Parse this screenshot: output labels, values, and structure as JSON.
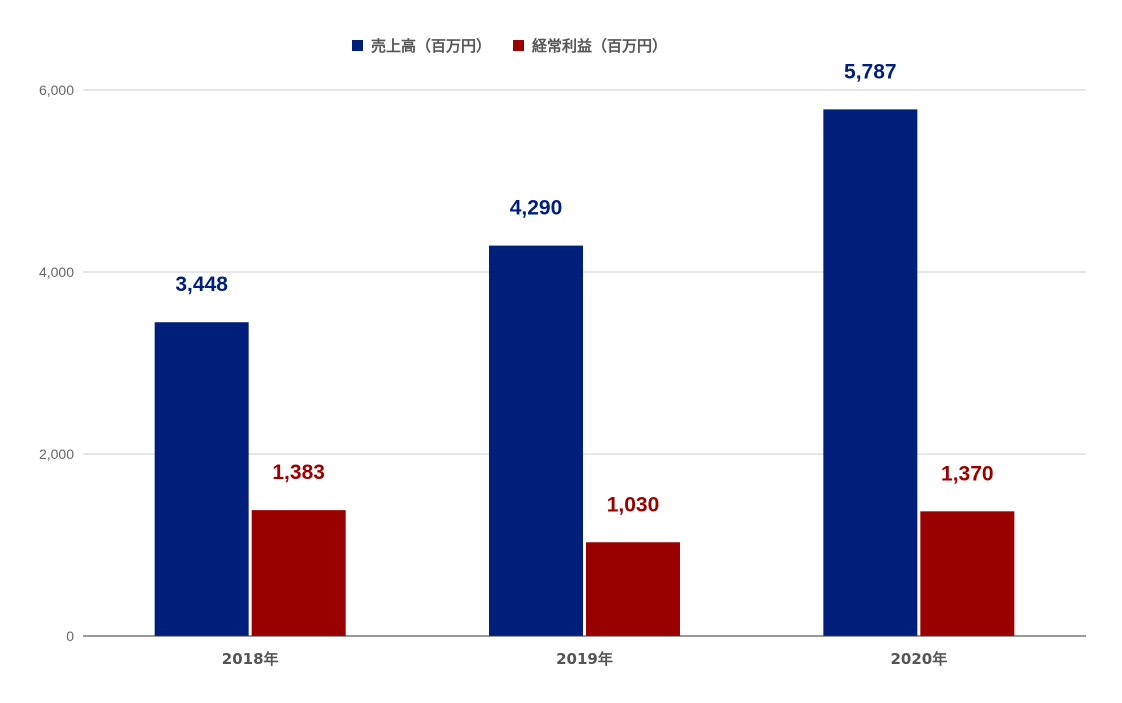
{
  "chart_data": {
    "type": "bar",
    "categories": [
      "2018年",
      "2019年",
      "2020年"
    ],
    "series": [
      {
        "name": "売上高（百万円）",
        "color": "#001f7a",
        "values": [
          3448,
          4290,
          5787
        ],
        "labels": [
          "3,448",
          "4,290",
          "5,787"
        ]
      },
      {
        "name": "経常利益（百万円）",
        "color": "#990000",
        "values": [
          1383,
          1030,
          1370
        ],
        "labels": [
          "1,383",
          "1,030",
          "1,370"
        ]
      }
    ],
    "ylim": [
      0,
      6000
    ],
    "yticks": [
      0,
      2000,
      4000,
      6000
    ],
    "ytick_labels": [
      "0",
      "2,000",
      "4,000",
      "6,000"
    ],
    "grid": true,
    "legend_position": "top",
    "title": "",
    "xlabel": "",
    "ylabel": ""
  }
}
